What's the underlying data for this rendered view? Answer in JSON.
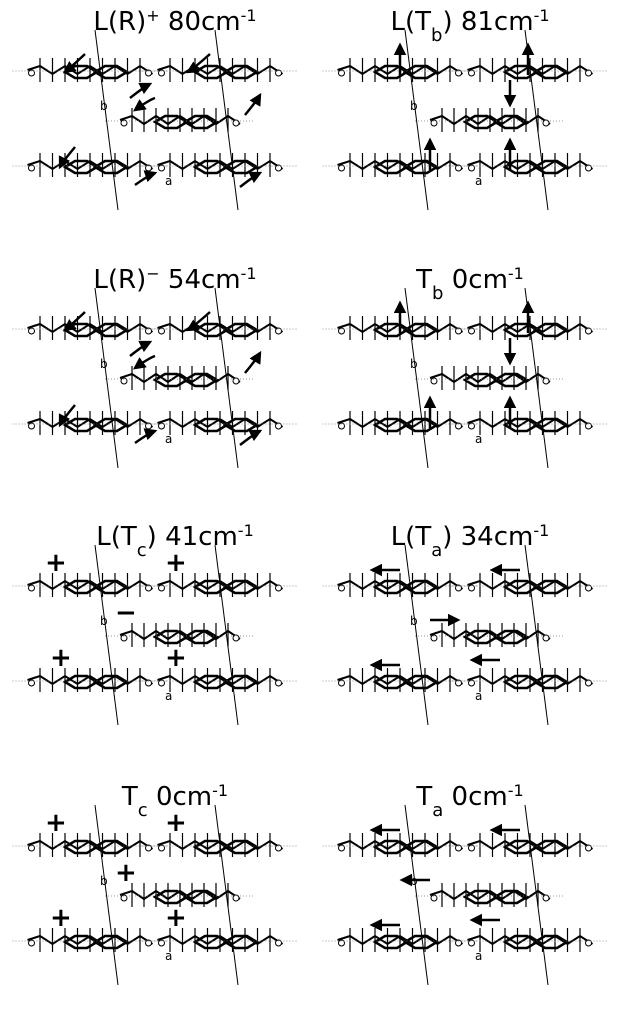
{
  "panels": [
    {
      "title": [
        {
          "text": "L(R)"
        },
        {
          "text": "+",
          "sup": true
        },
        {
          "text": " 80cm"
        },
        {
          "text": "-1",
          "sup": true
        }
      ],
      "labels": [
        "b",
        "a"
      ]
    },
    {
      "title": [
        {
          "text": "L(T"
        },
        {
          "text": "b",
          "sub": true
        },
        {
          "text": ") 81cm"
        },
        {
          "text": "-1",
          "sup": true
        }
      ],
      "labels": [
        "b",
        "a"
      ]
    },
    {
      "title": [
        {
          "text": "L(R)"
        },
        {
          "text": "−",
          "sup": true
        },
        {
          "text": " 54cm"
        },
        {
          "text": "-1",
          "sup": true
        }
      ],
      "labels": [
        "b",
        "a"
      ]
    },
    {
      "title": [
        {
          "text": "T"
        },
        {
          "text": "b",
          "sub": true
        },
        {
          "text": "   0cm"
        },
        {
          "text": "-1",
          "sup": true
        }
      ],
      "labels": [
        "b",
        "a"
      ]
    },
    {
      "title": [
        {
          "text": "L(T"
        },
        {
          "text": "c",
          "sub": true
        },
        {
          "text": ") 41cm"
        },
        {
          "text": "-1",
          "sup": true
        }
      ],
      "labels": [
        "b",
        "a"
      ],
      "signs": [
        "+",
        "+",
        "−",
        "+",
        "+"
      ]
    },
    {
      "title": [
        {
          "text": "L(T"
        },
        {
          "text": "a",
          "sub": true
        },
        {
          "text": ") 34cm"
        },
        {
          "text": "-1",
          "sup": true
        }
      ],
      "labels": [
        "b",
        "a"
      ]
    },
    {
      "title": [
        {
          "text": "T"
        },
        {
          "text": "c",
          "sub": true
        },
        {
          "text": "   0cm"
        },
        {
          "text": "-1",
          "sup": true
        }
      ],
      "labels": [
        "b",
        "a"
      ],
      "signs": [
        "+",
        "+",
        "+",
        "+",
        "+"
      ]
    },
    {
      "title": [
        {
          "text": "T"
        },
        {
          "text": "a",
          "sub": true
        },
        {
          "text": "   0cm"
        },
        {
          "text": "-1",
          "sup": true
        }
      ],
      "labels": [
        "b",
        "a"
      ]
    }
  ]
}
